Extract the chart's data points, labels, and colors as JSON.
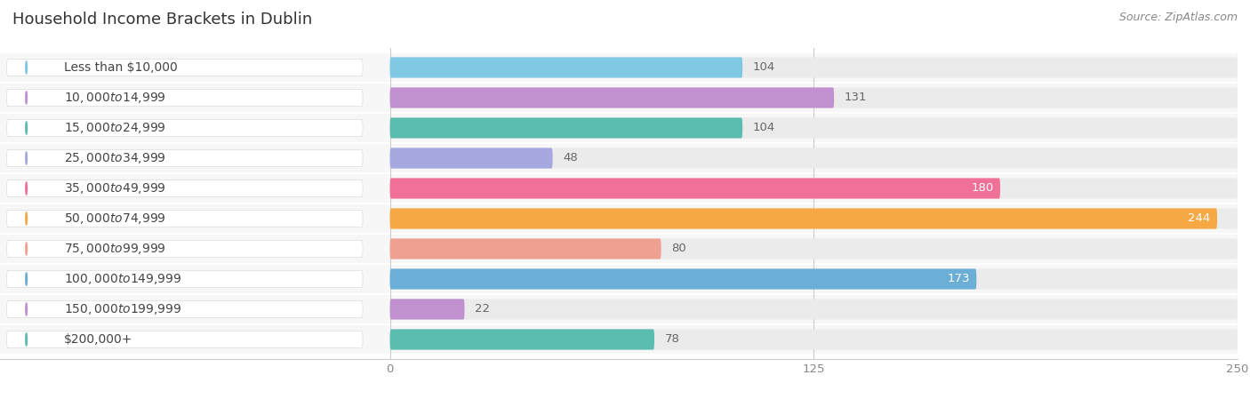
{
  "title": "Household Income Brackets in Dublin",
  "source": "Source: ZipAtlas.com",
  "categories": [
    "Less than $10,000",
    "$10,000 to $14,999",
    "$15,000 to $24,999",
    "$25,000 to $34,999",
    "$35,000 to $49,999",
    "$50,000 to $74,999",
    "$75,000 to $99,999",
    "$100,000 to $149,999",
    "$150,000 to $199,999",
    "$200,000+"
  ],
  "values": [
    104,
    131,
    104,
    48,
    180,
    244,
    80,
    173,
    22,
    78
  ],
  "bar_colors": [
    "#7ec8e3",
    "#c090d0",
    "#5bbcb0",
    "#a8a8e0",
    "#f07098",
    "#f5a843",
    "#f0a090",
    "#6baed6",
    "#c090d0",
    "#5bbcb0"
  ],
  "value_label_colors": [
    "#666666",
    "#666666",
    "#666666",
    "#666666",
    "#ffffff",
    "#ffffff",
    "#666666",
    "#ffffff",
    "#666666",
    "#666666"
  ],
  "value_inside": [
    false,
    false,
    false,
    false,
    true,
    true,
    false,
    true,
    false,
    false
  ],
  "xlim_left": -115,
  "xlim_right": 250,
  "xticks": [
    0,
    125,
    250
  ],
  "bar_bg_color": "#ebebeb",
  "title_fontsize": 13,
  "label_fontsize": 10,
  "value_fontsize": 9.5,
  "tick_fontsize": 9.5,
  "source_fontsize": 9
}
